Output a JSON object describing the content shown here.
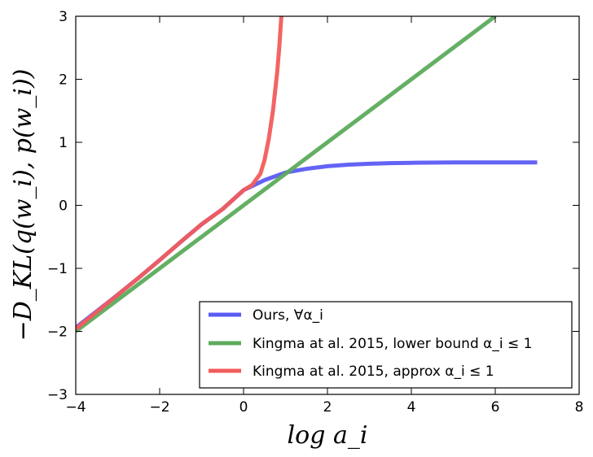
{
  "chart_data": {
    "type": "line",
    "xlabel": "log a_i",
    "ylabel": "−D_KL(q(w_i), p(w_i))",
    "xlim": [
      -4,
      8
    ],
    "ylim": [
      -3,
      3
    ],
    "xticks": [
      "−4",
      "−2",
      "0",
      "2",
      "4",
      "6",
      "8"
    ],
    "yticks": [
      "−3",
      "−2",
      "−1",
      "0",
      "1",
      "2",
      "3"
    ],
    "grid": false,
    "legend_position": "lower-right",
    "series": [
      {
        "name": "Ours, ∀α_i",
        "color": "#5b5bf5",
        "x": [
          -4,
          -3.5,
          -3,
          -2.5,
          -2,
          -1.5,
          -1,
          -0.5,
          0,
          0.5,
          1,
          1.5,
          2,
          2.5,
          3,
          3.5,
          4,
          5,
          6,
          7
        ],
        "y": [
          -1.94,
          -1.68,
          -1.42,
          -1.15,
          -0.87,
          -0.58,
          -0.3,
          -0.06,
          0.24,
          0.4,
          0.52,
          0.58,
          0.62,
          0.645,
          0.66,
          0.67,
          0.675,
          0.68,
          0.68,
          0.68
        ]
      },
      {
        "name": "Kingma at al. 2015, lower bound α_i ≤ 1",
        "color": "#5cab5c",
        "x": [
          -4,
          6
        ],
        "y": [
          -2.0,
          3.0
        ]
      },
      {
        "name": "Kingma at al. 2015, approx α_i ≤ 1",
        "color": "#f25c5c",
        "x": [
          -4,
          -3.5,
          -3,
          -2.5,
          -2,
          -1.5,
          -1,
          -0.5,
          0,
          0.2,
          0.4,
          0.5,
          0.6,
          0.7,
          0.8,
          0.85,
          0.9
        ],
        "y": [
          -1.96,
          -1.69,
          -1.42,
          -1.15,
          -0.87,
          -0.58,
          -0.3,
          -0.06,
          0.24,
          0.32,
          0.5,
          0.72,
          1.05,
          1.5,
          2.1,
          2.5,
          3.0
        ]
      }
    ]
  }
}
